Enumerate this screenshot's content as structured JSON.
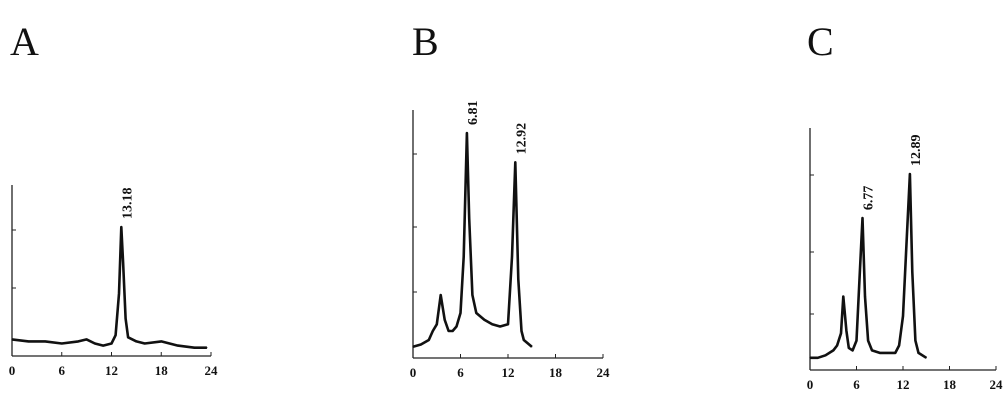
{
  "chart_data": [
    {
      "type": "line",
      "panel_label": "A",
      "xlim": [
        0,
        24
      ],
      "x_ticks": [
        "0",
        "6",
        "12",
        "18",
        "24"
      ],
      "grid": false,
      "peak_labels": [
        {
          "x": 13.18,
          "label": "13.18"
        }
      ],
      "series": [
        {
          "x": [
            0,
            2,
            4,
            6,
            8,
            9,
            10,
            11,
            12,
            12.5,
            12.9,
            13.18,
            13.4,
            13.7,
            14,
            15,
            16,
            18,
            20,
            22,
            23.5
          ],
          "y": [
            0.08,
            0.07,
            0.07,
            0.06,
            0.07,
            0.08,
            0.06,
            0.05,
            0.06,
            0.1,
            0.3,
            0.62,
            0.45,
            0.18,
            0.09,
            0.07,
            0.06,
            0.07,
            0.05,
            0.04,
            0.04
          ]
        }
      ]
    },
    {
      "type": "line",
      "panel_label": "B",
      "xlim": [
        0,
        24
      ],
      "x_ticks": [
        "0",
        "6",
        "12",
        "18",
        "24"
      ],
      "grid": false,
      "peak_labels": [
        {
          "x": 6.81,
          "label": "6.81"
        },
        {
          "x": 12.92,
          "label": "12.92"
        }
      ],
      "series": [
        {
          "x": [
            0,
            1,
            2,
            2.5,
            3,
            3.5,
            4,
            4.5,
            5,
            5.5,
            6,
            6.4,
            6.81,
            7.1,
            7.5,
            8,
            9,
            10,
            11,
            12,
            12.5,
            12.92,
            13.3,
            13.7,
            14,
            15
          ],
          "y": [
            0.05,
            0.06,
            0.08,
            0.12,
            0.15,
            0.28,
            0.17,
            0.12,
            0.12,
            0.14,
            0.2,
            0.45,
            1.0,
            0.62,
            0.28,
            0.2,
            0.17,
            0.15,
            0.14,
            0.15,
            0.45,
            0.87,
            0.35,
            0.12,
            0.08,
            0.05
          ]
        }
      ]
    },
    {
      "type": "line",
      "panel_label": "C",
      "xlim": [
        0,
        24
      ],
      "x_ticks": [
        "0",
        "6",
        "12",
        "18",
        "24"
      ],
      "grid": false,
      "peak_labels": [
        {
          "x": 6.77,
          "label": "6.77"
        },
        {
          "x": 12.89,
          "label": "12.89"
        }
      ],
      "series": [
        {
          "x": [
            0,
            1,
            2,
            3,
            3.5,
            4,
            4.3,
            4.7,
            5,
            5.5,
            6,
            6.4,
            6.77,
            7.1,
            7.5,
            8,
            9,
            10,
            11,
            11.5,
            12,
            12.5,
            12.89,
            13.2,
            13.6,
            14,
            15
          ],
          "y": [
            0.05,
            0.05,
            0.06,
            0.08,
            0.1,
            0.15,
            0.3,
            0.16,
            0.09,
            0.08,
            0.12,
            0.38,
            0.62,
            0.3,
            0.12,
            0.08,
            0.07,
            0.07,
            0.07,
            0.1,
            0.22,
            0.55,
            0.8,
            0.4,
            0.12,
            0.07,
            0.05
          ]
        }
      ]
    }
  ]
}
